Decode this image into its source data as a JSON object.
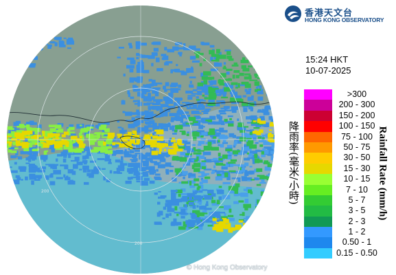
{
  "logo": {
    "name_zh": "香港天文台",
    "name_en": "HONG KONG OBSERVATORY",
    "icon": "observatory-logo"
  },
  "time": "15:24 HKT",
  "date": "10-07-2025",
  "copyright": "© Hong Kong Observatory",
  "range_rings": [
    "200",
    "200"
  ],
  "legend": {
    "axis_label_zh": "降雨率(毫米/小時)",
    "axis_label_en": "Rainfall Rate (mm/h)",
    "items": [
      {
        "label": ">300",
        "color": "#ff00ff"
      },
      {
        "label": "200 - 300",
        "color": "#cc0099"
      },
      {
        "label": "150 - 200",
        "color": "#cc0033"
      },
      {
        "label": "100 - 150",
        "color": "#ff0000"
      },
      {
        "label": "75 - 100",
        "color": "#ff6600"
      },
      {
        "label": "50 - 75",
        "color": "#ff9900"
      },
      {
        "label": "30 - 50",
        "color": "#ffcc00"
      },
      {
        "label": "15 - 30",
        "color": "#e6d800"
      },
      {
        "label": "10 - 15",
        "color": "#99ff33"
      },
      {
        "label": "7 - 10",
        "color": "#66ee22"
      },
      {
        "label": "5 - 7",
        "color": "#33cc33"
      },
      {
        "label": "3 - 5",
        "color": "#22bb44"
      },
      {
        "label": "2 - 3",
        "color": "#119955"
      },
      {
        "label": "1 - 2",
        "color": "#3399ff"
      },
      {
        "label": "0.50 - 1",
        "color": "#1e88ee"
      },
      {
        "label": "0.15 - 0.50",
        "color": "#33ccff"
      }
    ]
  }
}
